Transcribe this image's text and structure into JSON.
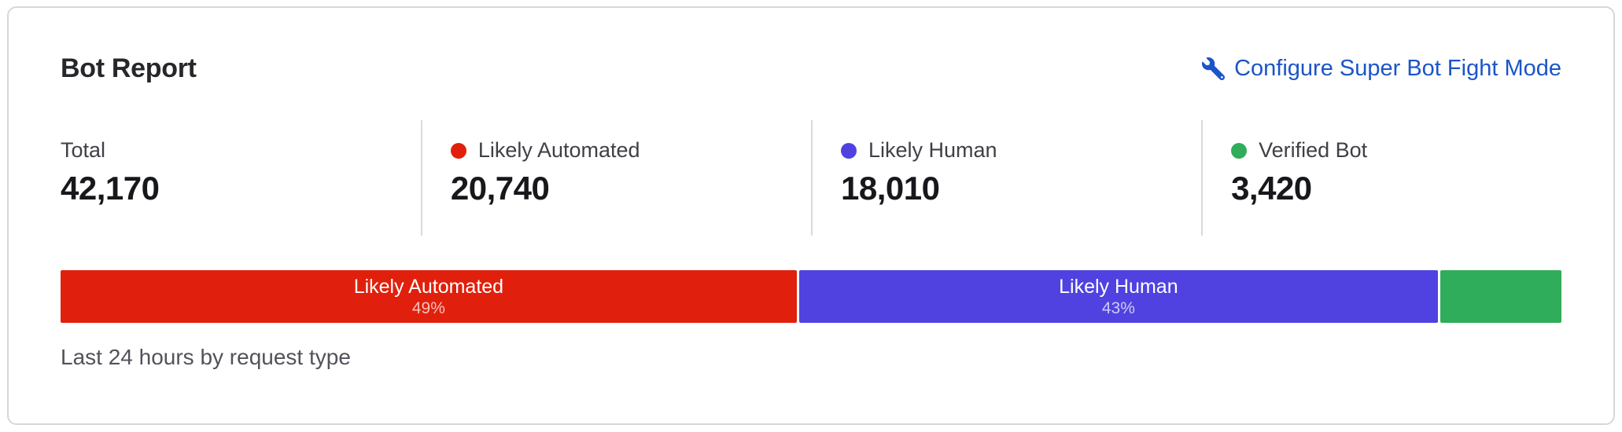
{
  "card": {
    "title": "Bot Report",
    "configure_link_label": "Configure Super Bot Fight Mode",
    "footer_note": "Last 24 hours by request type"
  },
  "colors": {
    "likely_automated": "#e0200c",
    "likely_human": "#5042e0",
    "verified_bot": "#2fad5a",
    "link_blue": "#1b55c8"
  },
  "stats": [
    {
      "label": "Total",
      "value": "42,170",
      "dot_color": null
    },
    {
      "label": "Likely Automated",
      "value": "20,740",
      "dot_color": "#e0200c"
    },
    {
      "label": "Likely Human",
      "value": "18,010",
      "dot_color": "#5042e0"
    },
    {
      "label": "Verified Bot",
      "value": "3,420",
      "dot_color": "#2fad5a"
    }
  ],
  "bar": {
    "segments": [
      {
        "label": "Likely Automated",
        "percent_label": "49%",
        "width_percent": 49.2,
        "color": "#e0200c"
      },
      {
        "label": "Likely Human",
        "percent_label": "43%",
        "width_percent": 42.7,
        "color": "#5042e0"
      },
      {
        "label": "",
        "percent_label": "",
        "width_percent": 8.1,
        "color": "#2fad5a"
      }
    ]
  },
  "chart_data": {
    "type": "bar",
    "layout": "horizontal-stacked-percentage",
    "title": "Bot Report",
    "subtitle": "Last 24 hours by request type",
    "categories": [
      "Likely Automated",
      "Likely Human",
      "Verified Bot"
    ],
    "values": [
      20740,
      18010,
      3420
    ],
    "total": 42170,
    "percent": [
      49,
      43,
      8
    ],
    "colors": [
      "#e0200c",
      "#5042e0",
      "#2fad5a"
    ],
    "legend_position": "top-row-with-values",
    "grid": false
  }
}
